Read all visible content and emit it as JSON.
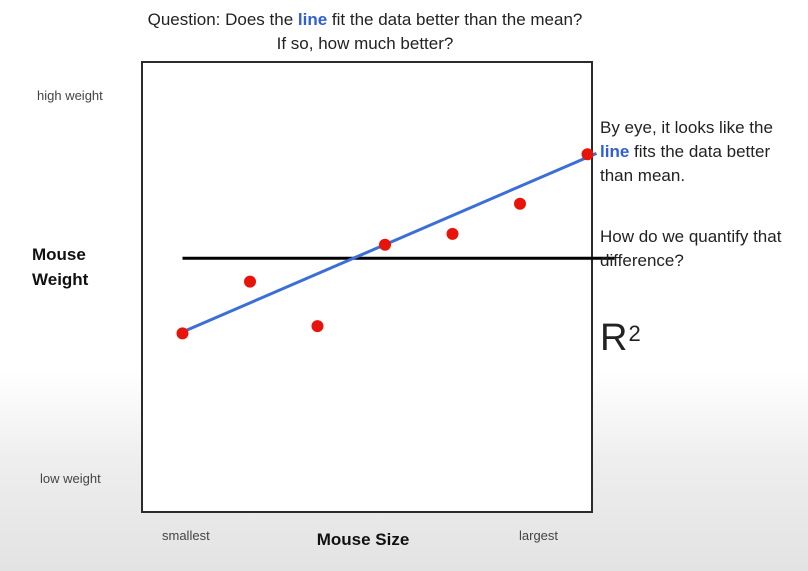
{
  "question": {
    "prefix": "Question:  Does the ",
    "highlight": "line",
    "suffix": " fit the data better than the mean?",
    "line2": "If so, how much better?"
  },
  "side": {
    "p1_prefix": "By eye, it looks like the ",
    "p1_highlight": "line",
    "p1_suffix": " fits the data better than mean.",
    "p2": "How do we quantify that difference?",
    "r2_base": "R",
    "r2_sup": "2"
  },
  "colors": {
    "fit_line": "#3b6fd8",
    "mean_line": "#000000",
    "points": "#e8140c",
    "highlight_text": "#2f5fd0"
  },
  "chart_data": {
    "type": "scatter",
    "xlabel": "Mouse Size",
    "ylabel": "Mouse Weight",
    "x_tick_labels": [
      "smallest",
      "largest"
    ],
    "y_tick_labels": [
      "low weight",
      "high weight"
    ],
    "xlim": [
      0,
      10
    ],
    "ylim": [
      0,
      10
    ],
    "grid": false,
    "series": [
      {
        "role": "points",
        "x": [
          0.9,
          2.4,
          3.9,
          5.4,
          6.9,
          8.4,
          9.9
        ],
        "y": [
          3.97,
          5.12,
          4.13,
          5.94,
          6.18,
          6.85,
          7.95
        ]
      },
      {
        "role": "fit",
        "x": [
          0.9,
          10.1
        ],
        "y": [
          4.0,
          7.97
        ]
      },
      {
        "role": "mean",
        "x": [
          0.9,
          10.5
        ],
        "y": [
          5.64,
          5.64
        ]
      }
    ]
  }
}
